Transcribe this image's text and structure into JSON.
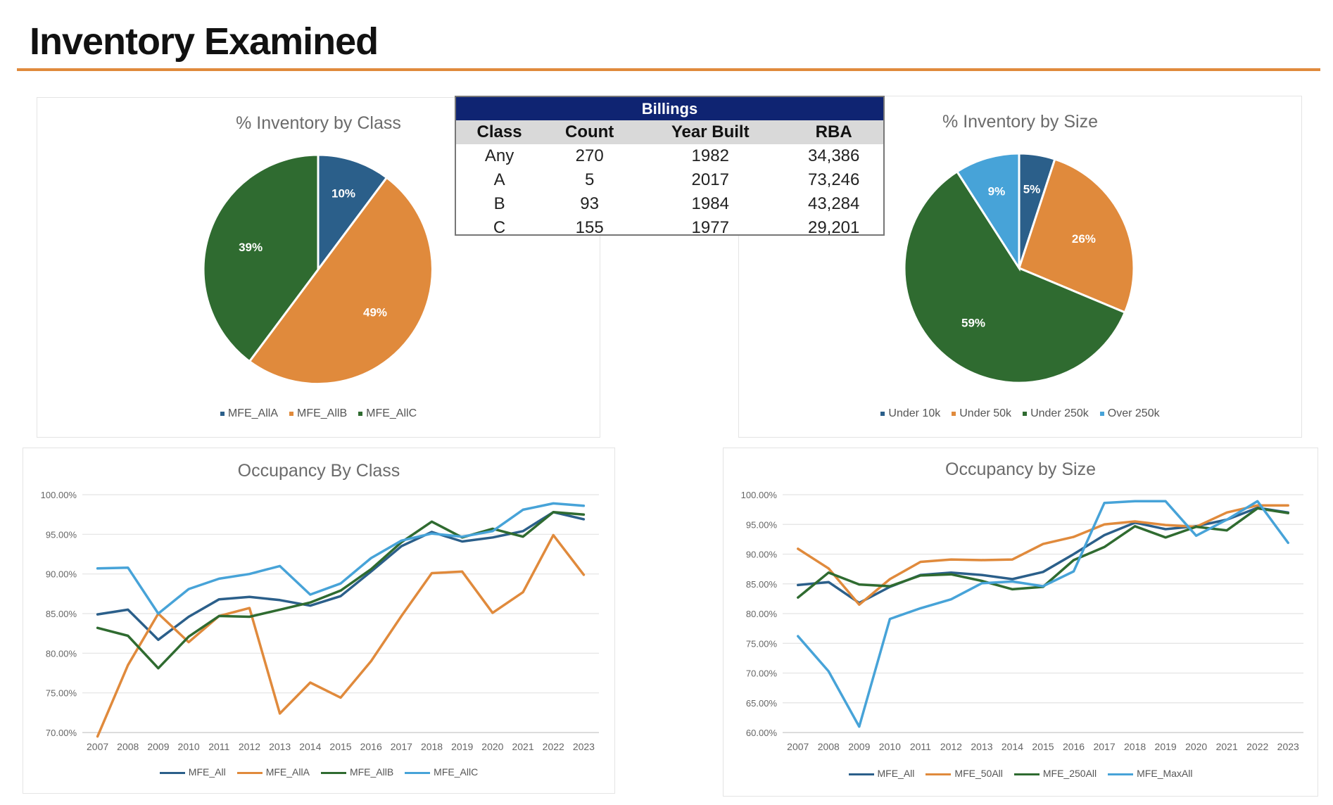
{
  "page": {
    "title": "Inventory Examined"
  },
  "colors": {
    "accent_rule": "#e08a3c",
    "table_header": "#0f2472"
  },
  "billings": {
    "caption": "Billings",
    "headers": [
      "Class",
      "Count",
      "Year Built",
      "RBA"
    ],
    "rows": [
      [
        "Any",
        "270",
        "1982",
        "34,386"
      ],
      [
        "A",
        "5",
        "2017",
        "73,246"
      ],
      [
        "B",
        "93",
        "1984",
        "43,284"
      ],
      [
        "C",
        "155",
        "1977",
        "29,201"
      ]
    ]
  },
  "chart_data": [
    {
      "id": "inv-class",
      "type": "pie",
      "title": "% Inventory by Class",
      "legend_position": "bottom",
      "slices": [
        {
          "label": "MFE_AllA",
          "value": 10,
          "display": "10%",
          "color": "#2b5f8a"
        },
        {
          "label": "MFE_AllB",
          "value": 49,
          "display": "49%",
          "color": "#e08a3c"
        },
        {
          "label": "MFE_AllC",
          "value": 39,
          "display": "39%",
          "color": "#2f6b30"
        }
      ]
    },
    {
      "id": "inv-size",
      "type": "pie",
      "title": "% Inventory by Size",
      "legend_position": "bottom",
      "slices": [
        {
          "label": "Under 10k",
          "value": 5,
          "display": "5%",
          "color": "#2b5f8a"
        },
        {
          "label": "Under 50k",
          "value": 26,
          "display": "26%",
          "color": "#e08a3c"
        },
        {
          "label": "Under 250k",
          "value": 59,
          "display": "59%",
          "color": "#2f6b30"
        },
        {
          "label": "Over 250k",
          "value": 9,
          "display": "9%",
          "color": "#47a3d8"
        }
      ]
    },
    {
      "id": "occ-class",
      "type": "line",
      "title": "Occupancy By Class",
      "legend_position": "bottom",
      "grid": true,
      "ylim": [
        70,
        100
      ],
      "yticks": [
        70,
        75,
        80,
        85,
        90,
        95,
        100
      ],
      "ytick_labels": [
        "70.00%",
        "75.00%",
        "80.00%",
        "85.00%",
        "90.00%",
        "95.00%",
        "100.00%"
      ],
      "categories": [
        "2007",
        "2008",
        "2009",
        "2010",
        "2011",
        "2012",
        "2013",
        "2014",
        "2015",
        "2016",
        "2017",
        "2018",
        "2019",
        "2020",
        "2021",
        "2022",
        "2023"
      ],
      "series": [
        {
          "name": "MFE_All",
          "color": "#2b5f8a",
          "values": [
            84.9,
            85.5,
            81.7,
            84.6,
            86.8,
            87.1,
            86.7,
            86.0,
            87.2,
            90.3,
            93.5,
            95.3,
            94.1,
            94.6,
            95.4,
            97.8,
            96.9
          ]
        },
        {
          "name": "MFE_AllA",
          "color": "#e08a3c",
          "values": [
            69.5,
            78.5,
            85.0,
            81.4,
            84.7,
            85.7,
            72.4,
            76.3,
            74.4,
            79.0,
            84.7,
            90.1,
            90.3,
            85.1,
            87.7,
            94.9,
            89.9
          ]
        },
        {
          "name": "MFE_AllB",
          "color": "#2f6b30",
          "values": [
            83.2,
            82.2,
            78.1,
            82.1,
            84.7,
            84.6,
            85.5,
            86.4,
            87.9,
            90.6,
            94.0,
            96.6,
            94.6,
            95.7,
            94.7,
            97.8,
            97.5
          ]
        },
        {
          "name": "MFE_AllC",
          "color": "#47a3d8",
          "values": [
            90.7,
            90.8,
            85.0,
            88.1,
            89.4,
            90.0,
            91.0,
            87.4,
            88.8,
            92.0,
            94.2,
            95.1,
            94.7,
            95.4,
            98.1,
            98.9,
            98.6
          ]
        }
      ]
    },
    {
      "id": "occ-size",
      "type": "line",
      "title": "Occupancy by Size",
      "legend_position": "bottom",
      "grid": true,
      "ylim": [
        60,
        100
      ],
      "yticks": [
        60,
        65,
        70,
        75,
        80,
        85,
        90,
        95,
        100
      ],
      "ytick_labels": [
        "60.00%",
        "65.00%",
        "70.00%",
        "75.00%",
        "80.00%",
        "85.00%",
        "90.00%",
        "95.00%",
        "100.00%"
      ],
      "categories": [
        "2007",
        "2008",
        "2009",
        "2010",
        "2011",
        "2012",
        "2013",
        "2014",
        "2015",
        "2016",
        "2017",
        "2018",
        "2019",
        "2020",
        "2021",
        "2022",
        "2023"
      ],
      "series": [
        {
          "name": "MFE_All",
          "color": "#2b5f8a",
          "values": [
            84.8,
            85.3,
            81.8,
            84.5,
            86.5,
            86.9,
            86.5,
            85.8,
            87.0,
            90.0,
            93.2,
            95.3,
            94.2,
            94.7,
            95.8,
            97.8,
            97.0
          ]
        },
        {
          "name": "MFE_50All",
          "color": "#e08a3c",
          "values": [
            90.9,
            87.6,
            81.5,
            85.8,
            88.7,
            89.1,
            89.0,
            89.1,
            91.7,
            92.9,
            95.0,
            95.5,
            94.9,
            94.6,
            97.0,
            98.2,
            98.2
          ]
        },
        {
          "name": "MFE_250All",
          "color": "#2f6b30",
          "values": [
            82.7,
            86.9,
            84.9,
            84.6,
            86.4,
            86.6,
            85.5,
            84.1,
            84.5,
            89.0,
            91.2,
            94.7,
            92.8,
            94.6,
            94.0,
            97.7,
            96.9
          ]
        },
        {
          "name": "MFE_MaxAll",
          "color": "#47a3d8",
          "values": [
            76.2,
            70.3,
            61.0,
            79.1,
            80.9,
            82.4,
            85.1,
            85.4,
            84.6,
            87.1,
            98.6,
            98.9,
            98.9,
            93.1,
            95.8,
            98.9,
            91.9
          ]
        }
      ]
    }
  ]
}
